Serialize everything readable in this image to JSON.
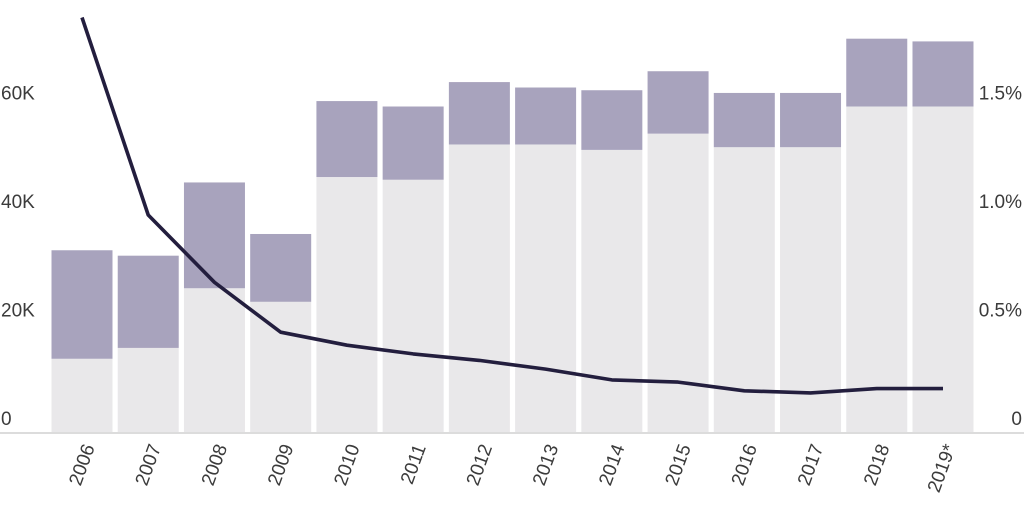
{
  "chart_data": {
    "type": "bar",
    "variant": "stacked-columns-with-line-overlay",
    "title": "",
    "categories": [
      "2006",
      "2007",
      "2008",
      "2009",
      "2010",
      "2011",
      "2012",
      "2013",
      "2014",
      "2015",
      "2016",
      "2017",
      "2018",
      "2019*"
    ],
    "series": [
      {
        "name": "bottom segment (light gray)",
        "axis": "left",
        "color": "#e9e8ea",
        "values": [
          13500,
          15500,
          26500,
          24000,
          47000,
          46500,
          53000,
          53000,
          52000,
          55000,
          52500,
          52500,
          60000,
          60000
        ]
      },
      {
        "name": "top segment (purple)",
        "axis": "left",
        "color": "#a8a3bd",
        "values": [
          20000,
          17000,
          19500,
          12500,
          14000,
          13500,
          11500,
          10500,
          11000,
          11500,
          10000,
          10000,
          12500,
          12000
        ]
      }
    ],
    "totals": [
      33500,
      32500,
      46000,
      36500,
      61000,
      60000,
      64500,
      63500,
      63000,
      66500,
      62500,
      62500,
      72500,
      72000
    ],
    "line_series": {
      "name": "percentage trend line",
      "axis": "right",
      "color": "#231e3e",
      "unit": "%",
      "values": [
        1.91,
        1.0,
        0.69,
        0.46,
        0.4,
        0.36,
        0.33,
        0.29,
        0.24,
        0.23,
        0.19,
        0.18,
        0.2,
        0.2
      ]
    },
    "left_axis": {
      "side": "left",
      "range": [
        0,
        79600
      ],
      "ticks": [
        {
          "label": "0",
          "value": 0
        },
        {
          "label": "20K",
          "value": 20000
        },
        {
          "label": "40K",
          "value": 40000
        },
        {
          "label": "60K",
          "value": 60000
        }
      ]
    },
    "right_axis": {
      "side": "right",
      "range": [
        0,
        1.99
      ],
      "ticks": [
        {
          "label": "0",
          "value": 0
        },
        {
          "label": "0.5%",
          "value": 0.5
        },
        {
          "label": "1.0%",
          "value": 1.0
        },
        {
          "label": "1.5%",
          "value": 1.5
        }
      ]
    },
    "axis_link": "60K on left axis aligns with 1.5% on right axis",
    "x_axis": {
      "label_rotation_deg": -70,
      "note": "last category flagged with asterisk"
    },
    "grid": "none",
    "legend": "none",
    "colors": {
      "bar_bottom": "#e9e8ea",
      "bar_top": "#a8a3bd",
      "line": "#231e3e",
      "axis_line": "#dcdcdc",
      "tick_text": "#3b3b3b",
      "background": "#ffffff"
    }
  }
}
